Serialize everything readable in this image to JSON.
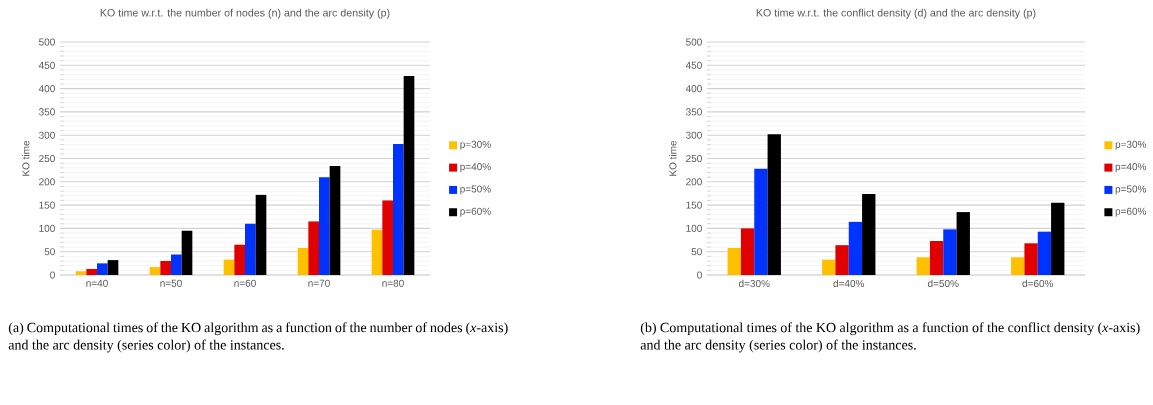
{
  "chart_data": [
    {
      "type": "bar",
      "title": "KO time w.r.t. the number of nodes (n) and the arc density (p)",
      "ylabel": "KO time",
      "categories": [
        "n=40",
        "n=50",
        "n=60",
        "n=70",
        "n=80"
      ],
      "series": [
        {
          "name": "p=30%",
          "color": "#ffc000",
          "values": [
            8,
            17,
            33,
            58,
            97
          ]
        },
        {
          "name": "p=40%",
          "color": "#e00000",
          "values": [
            13,
            30,
            65,
            115,
            160
          ]
        },
        {
          "name": "p=50%",
          "color": "#0033ff",
          "values": [
            25,
            44,
            110,
            210,
            281
          ]
        },
        {
          "name": "p=60%",
          "color": "#000000",
          "values": [
            32,
            95,
            172,
            234,
            427
          ]
        }
      ],
      "ylim": [
        0,
        500
      ],
      "yticks": [
        0,
        50,
        100,
        150,
        200,
        250,
        300,
        350,
        400,
        450,
        500
      ],
      "grid": "y",
      "legend": "right",
      "annotations": [
        "(a) Computational times of the KO algorithm as a function of the number of nodes (*x*-axis) and the arc density (series color) of the instances."
      ]
    },
    {
      "type": "bar",
      "title": "KO time w.r.t. the conflict density (d) and the arc density (p)",
      "ylabel": "KO time",
      "categories": [
        "d=30%",
        "d=40%",
        "d=50%",
        "d=60%"
      ],
      "series": [
        {
          "name": "p=30%",
          "color": "#ffc000",
          "values": [
            58,
            33,
            38,
            38
          ]
        },
        {
          "name": "p=40%",
          "color": "#e00000",
          "values": [
            100,
            64,
            73,
            68
          ]
        },
        {
          "name": "p=50%",
          "color": "#0033ff",
          "values": [
            228,
            114,
            98,
            93
          ]
        },
        {
          "name": "p=60%",
          "color": "#000000",
          "values": [
            302,
            174,
            135,
            155
          ]
        }
      ],
      "ylim": [
        0,
        500
      ],
      "yticks": [
        0,
        50,
        100,
        150,
        200,
        250,
        300,
        350,
        400,
        450,
        500
      ],
      "grid": "y",
      "legend": "right",
      "annotations": [
        "(b) Computational times of the KO algorithm as a function of the conflict density (*x*-axis) and the arc density (series color) of the instances."
      ]
    }
  ]
}
